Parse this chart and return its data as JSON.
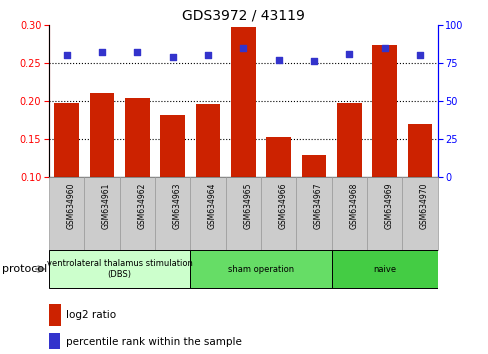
{
  "title": "GDS3972 / 43119",
  "samples": [
    "GSM634960",
    "GSM634961",
    "GSM634962",
    "GSM634963",
    "GSM634964",
    "GSM634965",
    "GSM634966",
    "GSM634967",
    "GSM634968",
    "GSM634969",
    "GSM634970"
  ],
  "log2_ratio": [
    0.197,
    0.21,
    0.204,
    0.181,
    0.196,
    0.297,
    0.152,
    0.129,
    0.197,
    0.273,
    0.17
  ],
  "percentile_rank": [
    80,
    82,
    82,
    79,
    80,
    85,
    77,
    76,
    81,
    85,
    80
  ],
  "ylim_left": [
    0.1,
    0.3
  ],
  "ylim_right": [
    0,
    100
  ],
  "yticks_left": [
    0.1,
    0.15,
    0.2,
    0.25,
    0.3
  ],
  "yticks_right": [
    0,
    25,
    50,
    75,
    100
  ],
  "bar_color": "#cc2200",
  "dot_color": "#3333cc",
  "groups": [
    {
      "label": "ventrolateral thalamus stimulation\n(DBS)",
      "start": 0,
      "end": 3,
      "color": "#ccffcc"
    },
    {
      "label": "sham operation",
      "start": 4,
      "end": 7,
      "color": "#66dd66"
    },
    {
      "label": "naive",
      "start": 8,
      "end": 10,
      "color": "#44cc44"
    }
  ],
  "legend_bar_label": "log2 ratio",
  "legend_dot_label": "percentile rank within the sample",
  "protocol_label": "protocol",
  "sample_box_color": "#cccccc",
  "sample_box_edge": "#999999"
}
